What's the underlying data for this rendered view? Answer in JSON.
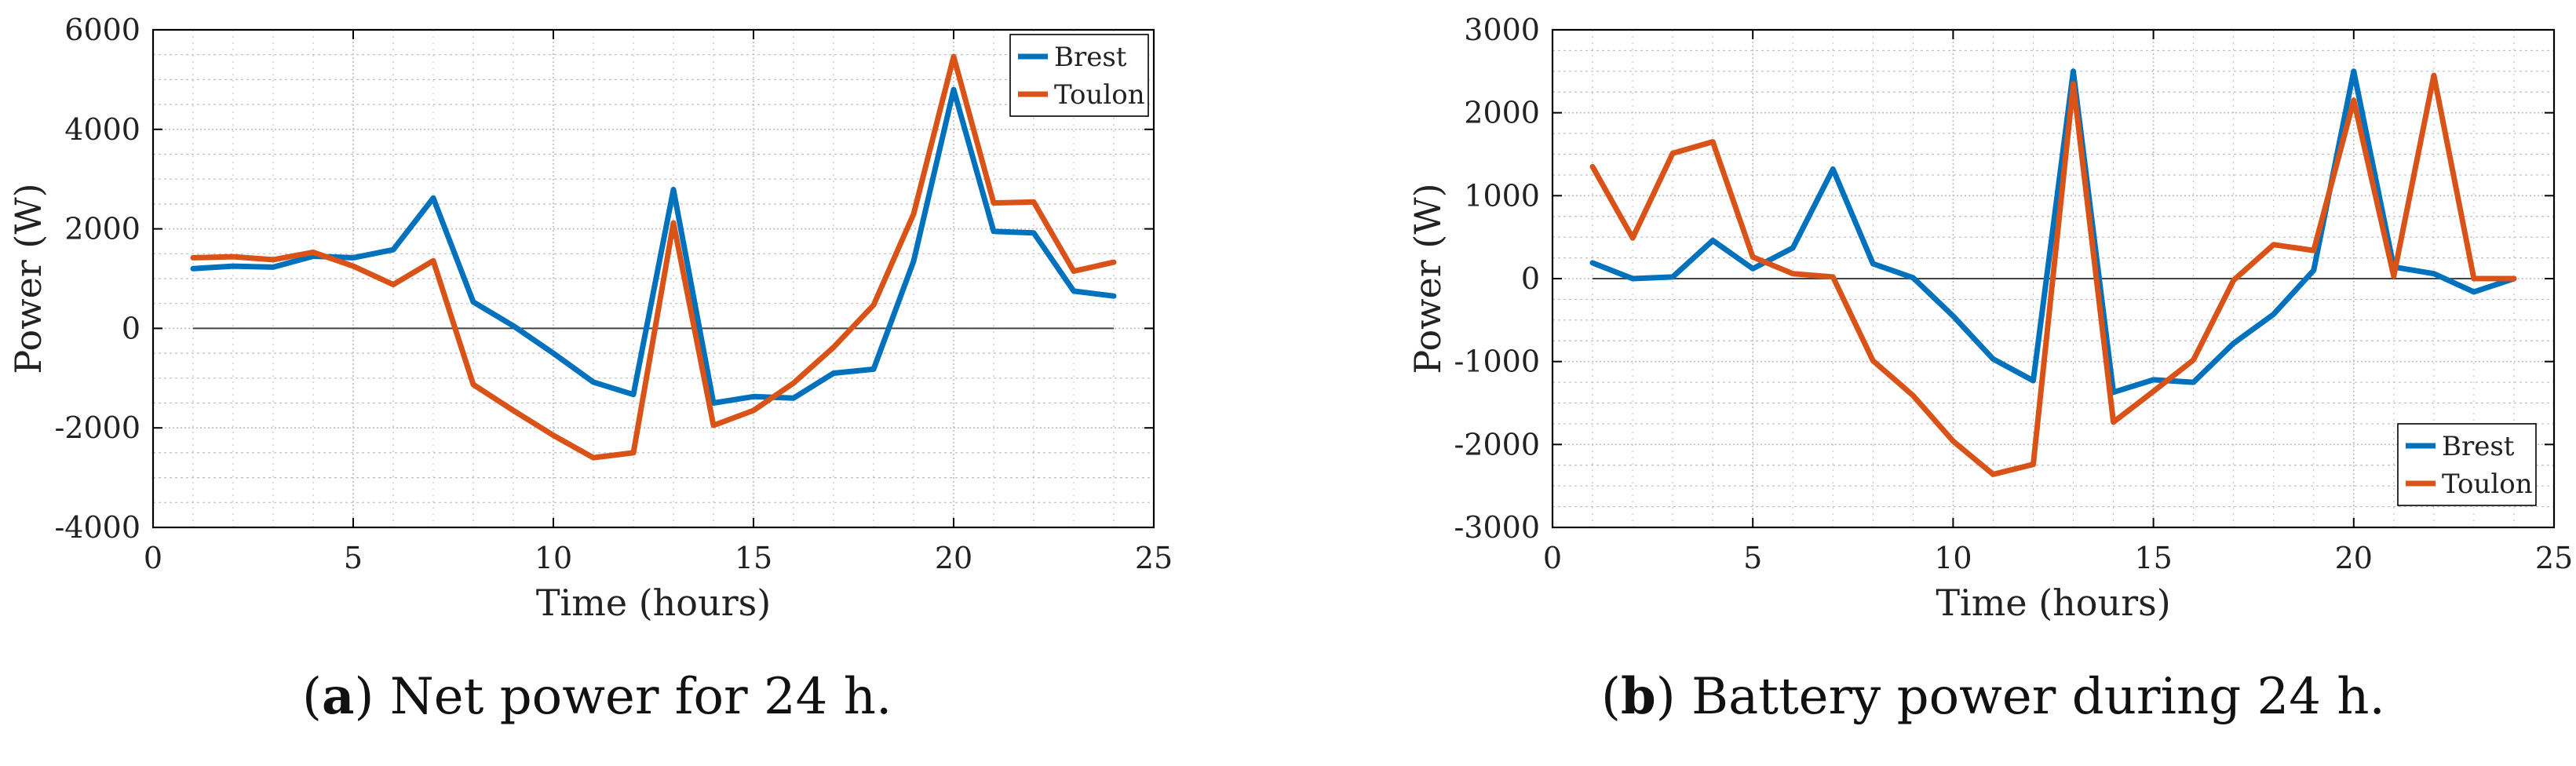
{
  "colors": {
    "brest": "#0072BD",
    "toulon": "#D95319",
    "axis": "#000000",
    "grid": "#bdbdbd",
    "zero": "#444444"
  },
  "captions": [
    {
      "letter": "a",
      "open": "(",
      "close": ")",
      "text": " Net power for 24 h."
    },
    {
      "letter": "b",
      "open": "(",
      "close": ")",
      "text": " Battery power during 24 h."
    }
  ],
  "chart_data": [
    {
      "type": "line",
      "title": "",
      "xlabel": "Time (hours)",
      "ylabel": "Power (W)",
      "xlim": [
        0,
        25
      ],
      "ylim": [
        -4000,
        6000
      ],
      "xticks": [
        0,
        5,
        10,
        15,
        20,
        25
      ],
      "yticks": [
        -4000,
        -2000,
        0,
        2000,
        4000,
        6000
      ],
      "ytick_labels": [
        "-4000",
        "-2000",
        "0",
        "2000",
        "4000",
        "6000"
      ],
      "grid": true,
      "legend": "top-right",
      "x": [
        1,
        2,
        3,
        4,
        5,
        6,
        7,
        8,
        9,
        10,
        11,
        12,
        13,
        14,
        15,
        16,
        17,
        18,
        19,
        20,
        21,
        22,
        23,
        24
      ],
      "series": [
        {
          "name": "Brest",
          "color_key": "brest",
          "values": [
            1200,
            1250,
            1230,
            1450,
            1420,
            1580,
            2620,
            530,
            50,
            -500,
            -1080,
            -1330,
            2790,
            -1500,
            -1370,
            -1400,
            -900,
            -820,
            1350,
            4800,
            1950,
            1920,
            750,
            650
          ]
        },
        {
          "name": "Toulon",
          "color_key": "toulon",
          "values": [
            1420,
            1440,
            1380,
            1530,
            1250,
            880,
            1360,
            -1130,
            -1650,
            -2150,
            -2600,
            -2500,
            2120,
            -1950,
            -1650,
            -1100,
            -380,
            470,
            2300,
            5460,
            2520,
            2540,
            1150,
            1330
          ]
        }
      ]
    },
    {
      "type": "line",
      "title": "",
      "xlabel": "Time (hours)",
      "ylabel": "Power (W)",
      "xlim": [
        0,
        25
      ],
      "ylim": [
        -3000,
        3000
      ],
      "xticks": [
        0,
        5,
        10,
        15,
        20,
        25
      ],
      "yticks": [
        -3000,
        -2000,
        -1000,
        0,
        1000,
        2000,
        3000
      ],
      "ytick_labels": [
        "-3000",
        "-2000",
        "-1000",
        "0",
        "1000",
        "2000",
        "3000"
      ],
      "grid": true,
      "legend": "bottom-right",
      "x": [
        1,
        2,
        3,
        4,
        5,
        6,
        7,
        8,
        9,
        10,
        11,
        12,
        13,
        14,
        15,
        16,
        17,
        18,
        19,
        20,
        21,
        22,
        23,
        24
      ],
      "series": [
        {
          "name": "Brest",
          "color_key": "brest",
          "values": [
            190,
            0,
            20,
            460,
            120,
            370,
            1320,
            180,
            10,
            -450,
            -970,
            -1230,
            2500,
            -1370,
            -1220,
            -1250,
            -780,
            -430,
            100,
            2500,
            140,
            60,
            -160,
            0
          ]
        },
        {
          "name": "Toulon",
          "color_key": "toulon",
          "values": [
            1350,
            490,
            1510,
            1650,
            260,
            60,
            20,
            -990,
            -1410,
            -1960,
            -2360,
            -2240,
            2350,
            -1730,
            -1360,
            -980,
            -20,
            410,
            340,
            2150,
            30,
            2450,
            0,
            0
          ]
        }
      ]
    }
  ]
}
